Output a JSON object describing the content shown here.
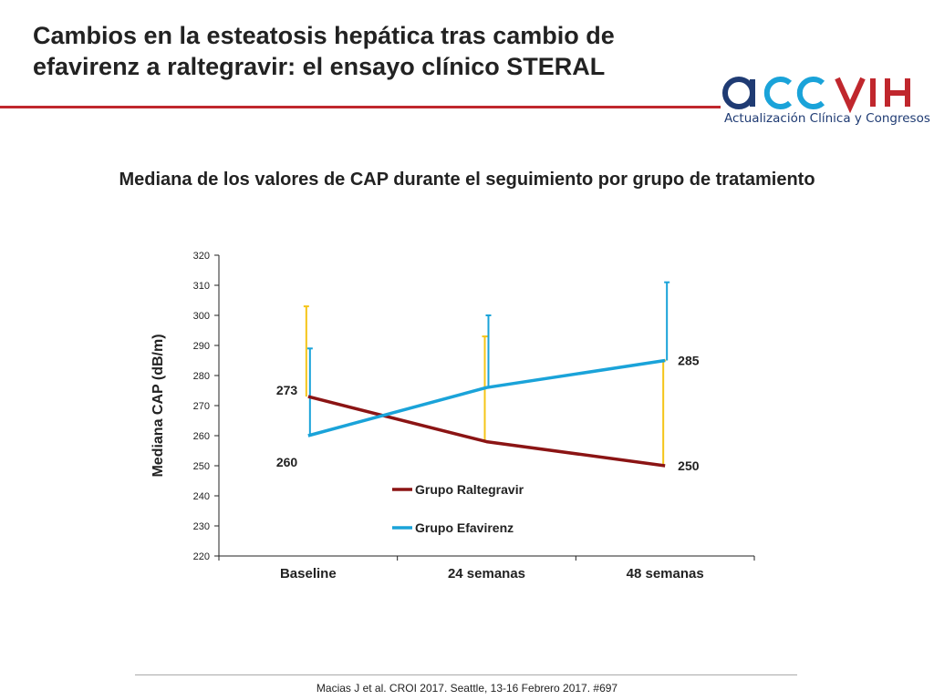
{
  "slide": {
    "title": "Cambios en la esteatosis hepática tras cambio de efavirenz a raltegravir: el ensayo clínico STERAL",
    "citation": "Macias J et al. CROI 2017. Seattle, 13-16 Febrero 2017. #697"
  },
  "logo": {
    "mark_text": "acc VIH",
    "tagline": "Actualización Clínica y Congresos",
    "colors": {
      "blue": "#1f3b73",
      "light_blue": "#1aa3d9",
      "red": "#c0272d"
    }
  },
  "chart_data": {
    "type": "line",
    "title": "Mediana de los valores de CAP durante el seguimiento por grupo de tratamiento",
    "ylabel": "Mediana CAP (dB/m)",
    "xlabel": "",
    "categories": [
      "Baseline",
      "24 semanas",
      "48 semanas"
    ],
    "ylim": [
      220,
      320
    ],
    "yticks": [
      220,
      230,
      240,
      250,
      260,
      270,
      280,
      290,
      300,
      310,
      320
    ],
    "grid": false,
    "legend_position": "inside-bottom-center",
    "series": [
      {
        "name": "Grupo Raltegravir",
        "color": "#8b1414",
        "errorbar_color": "#f5c518",
        "values": [
          273,
          258,
          250
        ],
        "upper": [
          303,
          293,
          285
        ],
        "point_labels": [
          "273",
          "",
          "250"
        ]
      },
      {
        "name": "Grupo Efavirenz",
        "color": "#1aa3d9",
        "errorbar_color": "#1aa3d9",
        "values": [
          260,
          276,
          285
        ],
        "upper": [
          289,
          300,
          311
        ],
        "point_labels": [
          "260",
          "",
          "285"
        ]
      }
    ]
  }
}
